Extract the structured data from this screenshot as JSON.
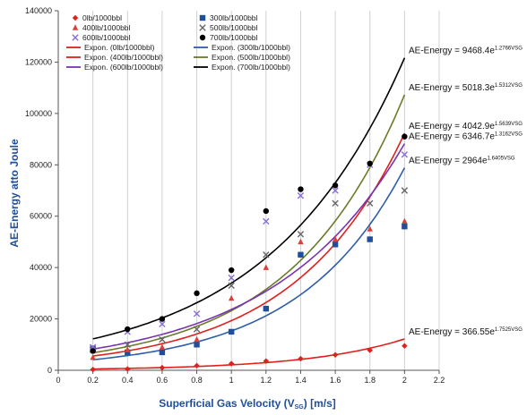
{
  "chart_data": {
    "type": "scatter",
    "xlabel": "Superficial Gas Velocity (V",
    "xlabel_sub": "SG",
    "xlabel_tail": ") [m/s]",
    "ylabel": "AE-Energy atto Joule",
    "xlim": [
      0,
      2.2
    ],
    "ylim": [
      0,
      140000
    ],
    "xticks": [
      "0",
      "0.2",
      "0.4",
      "0.6",
      "0.8",
      "1",
      "1.2",
      "1.4",
      "1.6",
      "1.8",
      "2",
      "2.2"
    ],
    "yticks": [
      "0",
      "20000",
      "40000",
      "60000",
      "80000",
      "100000",
      "120000",
      "140000"
    ],
    "grid": "vertical",
    "legend_position": "top-left",
    "series": [
      {
        "name": "0lb/1000bbl",
        "marker": "diamond",
        "color": "#e0201c",
        "x": [
          0.2,
          0.4,
          0.6,
          0.8,
          1.0,
          1.2,
          1.4,
          1.6,
          1.8,
          2.0
        ],
        "y": [
          300,
          500,
          1000,
          1800,
          2600,
          3600,
          4500,
          6000,
          7800,
          9500
        ]
      },
      {
        "name": "300lb/1000bbl",
        "marker": "square",
        "color": "#1f4e9a",
        "x": [
          0.2,
          0.4,
          0.6,
          0.8,
          1.0,
          1.2,
          1.4,
          1.6,
          1.8,
          2.0
        ],
        "y": [
          8500,
          7000,
          7000,
          10000,
          15000,
          24000,
          45000,
          49000,
          51000,
          56000
        ]
      },
      {
        "name": "400lb/1000bbl",
        "marker": "triangle",
        "color": "#d9403a",
        "x": [
          0.2,
          0.4,
          0.6,
          0.8,
          1.0,
          1.2,
          1.4,
          1.6,
          1.8,
          2.0
        ],
        "y": [
          5000,
          8000,
          9000,
          12000,
          28000,
          40000,
          50000,
          51000,
          55000,
          58000
        ]
      },
      {
        "name": "500lb/1000bbl",
        "marker": "x",
        "color": "#666666",
        "x": [
          0.2,
          0.4,
          0.6,
          0.8,
          1.0,
          1.2,
          1.4,
          1.6,
          1.8,
          2.0
        ],
        "y": [
          8000,
          10000,
          12000,
          16000,
          33000,
          45000,
          53000,
          65000,
          65000,
          70000
        ]
      },
      {
        "name": "600lb/1000bbl",
        "marker": "x",
        "color": "#8a6fd4",
        "x": [
          0.2,
          0.4,
          0.6,
          0.8,
          1.0,
          1.2,
          1.4,
          1.6,
          1.8,
          2.0
        ],
        "y": [
          9000,
          15000,
          18000,
          22000,
          36000,
          58000,
          68000,
          70000,
          80000,
          84000
        ]
      },
      {
        "name": "700lb/1000bbl",
        "marker": "circle",
        "color": "#000000",
        "x": [
          0.2,
          0.4,
          0.6,
          0.8,
          1.0,
          1.2,
          1.4,
          1.6,
          1.8,
          2.0
        ],
        "y": [
          7500,
          16000,
          20000,
          30000,
          39000,
          62000,
          70500,
          72000,
          80500,
          91000
        ]
      }
    ],
    "fits": [
      {
        "name": "Expon. (0lb/1000bbl)",
        "color": "#e0201c",
        "a": 366.55,
        "b": 1.7525,
        "coef": "366.55",
        "exp": "1.7525VSG"
      },
      {
        "name": "Expon. (300lb/1000bbl)",
        "color": "#2e5ea8",
        "a": 2964,
        "b": 1.6405,
        "coef": "2964",
        "exp": "1.6405VSG"
      },
      {
        "name": "Expon. (400lb/1000bbl)",
        "color": "#e0201c",
        "a": 4042.9,
        "b": 1.5639,
        "coef": "4042.9",
        "exp": "1.5639VSG"
      },
      {
        "name": "Expon. (500lb/1000bbl)",
        "color": "#6b7b2a",
        "a": 5018.3,
        "b": 1.5312,
        "coef": "5018.3",
        "exp": "1.5312VSG"
      },
      {
        "name": "Expon. (600lb/1000bbl)",
        "color": "#7a33b0",
        "a": 6346.7,
        "b": 1.3162,
        "coef": "6346.7",
        "exp": "1.3162VSG"
      },
      {
        "name": "Expon. (700lb/1000bbl)",
        "color": "#000000",
        "a": 9468.4,
        "b": 1.2766,
        "coef": "9468.4",
        "exp": "1.2766VSG"
      }
    ],
    "equation_prefix": "AE-Energy = ",
    "equation_base": "e"
  }
}
